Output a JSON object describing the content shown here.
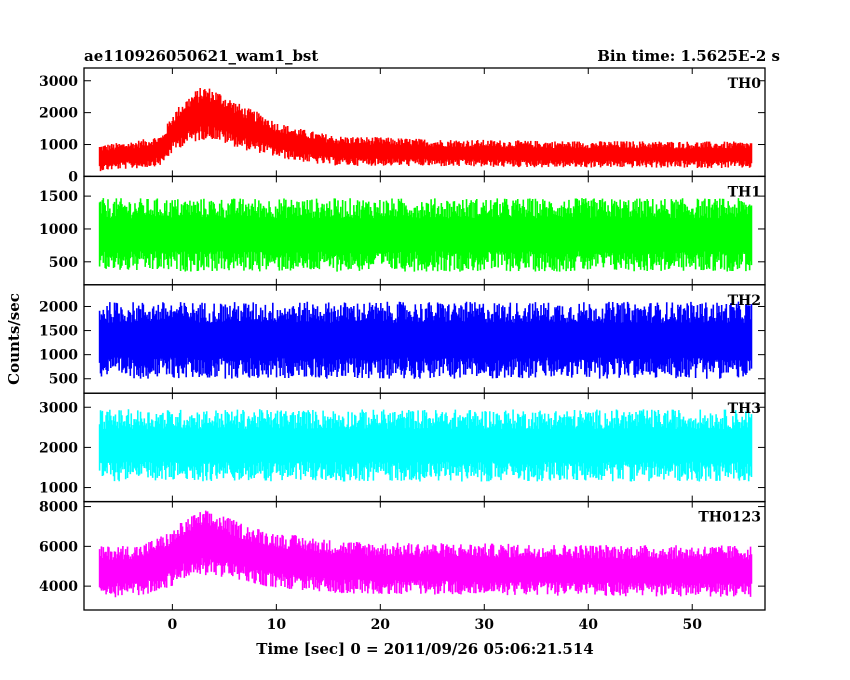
{
  "header": {
    "title": "ae110926050621_wam1_bst",
    "bin_time": "Bin time: 1.5625E-2 s"
  },
  "chart_data": {
    "type": "line",
    "title": "ae110926050621_wam1_bst",
    "xlabel": "Time [sec] 0 = 2011/09/26 05:06:21.514",
    "ylabel": "Counts/sec",
    "xlim": [
      -8.5,
      57
    ],
    "xticks": [
      0,
      10,
      20,
      30,
      40,
      50
    ],
    "grid": false,
    "panels": [
      {
        "name": "TH0",
        "color": "#ff0000",
        "ylim": [
          0,
          3400
        ],
        "yticks": [
          0,
          1000,
          2000,
          3000
        ],
        "x": [
          -7,
          -5,
          -3,
          -1,
          0,
          1,
          2,
          3,
          4,
          5,
          6,
          7,
          8,
          9,
          10,
          12,
          14,
          16,
          20,
          25,
          30,
          35,
          40,
          45,
          50,
          55.7
        ],
        "mean": [
          580,
          640,
          700,
          830,
          1350,
          1650,
          1850,
          2000,
          1950,
          1800,
          1650,
          1500,
          1400,
          1300,
          1150,
          1000,
          880,
          800,
          780,
          740,
          720,
          700,
          690,
          690,
          680,
          670
        ],
        "spread": [
          420,
          420,
          450,
          480,
          620,
          700,
          800,
          850,
          800,
          780,
          720,
          680,
          650,
          600,
          560,
          520,
          500,
          470,
          450,
          430,
          430,
          420,
          420,
          420,
          420,
          420
        ]
      },
      {
        "name": "TH1",
        "color": "#00ff00",
        "ylim": [
          150,
          1800
        ],
        "yticks": [
          500,
          1000,
          1500
        ],
        "x": [
          -7,
          55.7
        ],
        "mean": [
          910,
          910
        ],
        "spread": [
          560,
          560
        ]
      },
      {
        "name": "TH2",
        "color": "#0000ff",
        "ylim": [
          200,
          2450
        ],
        "yticks": [
          500,
          1000,
          1500,
          2000
        ],
        "x": [
          -7,
          55.7
        ],
        "mean": [
          1300,
          1300
        ],
        "spread": [
          800,
          800
        ]
      },
      {
        "name": "TH3",
        "color": "#00ffff",
        "ylim": [
          650,
          3350
        ],
        "yticks": [
          1000,
          2000,
          3000
        ],
        "x": [
          -7,
          55.7
        ],
        "mean": [
          2050,
          2050
        ],
        "spread": [
          900,
          900
        ]
      },
      {
        "name": "TH0123",
        "color": "#ff00ff",
        "ylim": [
          2800,
          8250
        ],
        "yticks": [
          4000,
          6000,
          8000
        ],
        "x": [
          -7,
          -3,
          0,
          1,
          2,
          3,
          4,
          5,
          6,
          8,
          10,
          15,
          20,
          30,
          40,
          50,
          55.7
        ],
        "mean": [
          4700,
          4800,
          5400,
          5800,
          6000,
          6200,
          6100,
          6000,
          5800,
          5500,
          5300,
          5000,
          4900,
          4850,
          4800,
          4750,
          4750
        ],
        "spread": [
          1300,
          1300,
          1400,
          1500,
          1600,
          1650,
          1600,
          1550,
          1500,
          1450,
          1400,
          1350,
          1300,
          1300,
          1300,
          1300,
          1300
        ]
      }
    ]
  }
}
